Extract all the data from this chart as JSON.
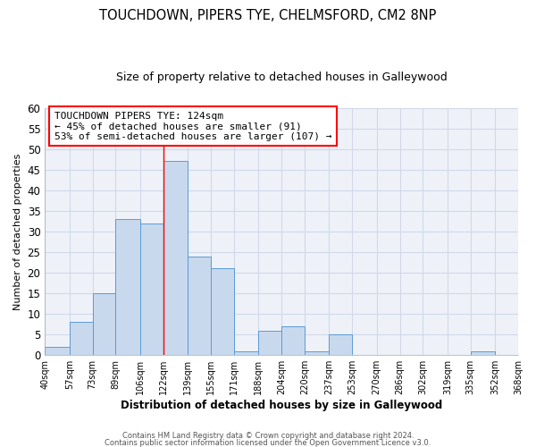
{
  "title": "TOUCHDOWN, PIPERS TYE, CHELMSFORD, CM2 8NP",
  "subtitle": "Size of property relative to detached houses in Galleywood",
  "xlabel": "Distribution of detached houses by size in Galleywood",
  "ylabel": "Number of detached properties",
  "bin_edges": [
    40,
    57,
    73,
    89,
    106,
    122,
    139,
    155,
    171,
    188,
    204,
    220,
    237,
    253,
    270,
    286,
    302,
    319,
    335,
    352,
    368
  ],
  "counts": [
    2,
    8,
    15,
    33,
    32,
    47,
    24,
    21,
    1,
    6,
    7,
    1,
    5,
    0,
    0,
    0,
    0,
    0,
    1,
    0
  ],
  "tick_labels": [
    "40sqm",
    "57sqm",
    "73sqm",
    "89sqm",
    "106sqm",
    "122sqm",
    "139sqm",
    "155sqm",
    "171sqm",
    "188sqm",
    "204sqm",
    "220sqm",
    "237sqm",
    "253sqm",
    "270sqm",
    "286sqm",
    "302sqm",
    "319sqm",
    "335sqm",
    "352sqm",
    "368sqm"
  ],
  "bar_color": "#c8d9ed",
  "bar_edge_color": "#5b9bd5",
  "vline_x": 122,
  "vline_color": "red",
  "ylim": [
    0,
    60
  ],
  "yticks": [
    0,
    5,
    10,
    15,
    20,
    25,
    30,
    35,
    40,
    45,
    50,
    55,
    60
  ],
  "annotation_title": "TOUCHDOWN PIPERS TYE: 124sqm",
  "annotation_line1": "← 45% of detached houses are smaller (91)",
  "annotation_line2": "53% of semi-detached houses are larger (107) →",
  "annotation_box_color": "white",
  "annotation_box_edge_color": "red",
  "footer1": "Contains HM Land Registry data © Crown copyright and database right 2024.",
  "footer2": "Contains public sector information licensed under the Open Government Licence v3.0.",
  "plot_bg_color": "#eef2f8",
  "fig_bg_color": "#ffffff",
  "grid_color": "#d0d8e8",
  "figsize": [
    6.0,
    5.0
  ],
  "dpi": 100
}
